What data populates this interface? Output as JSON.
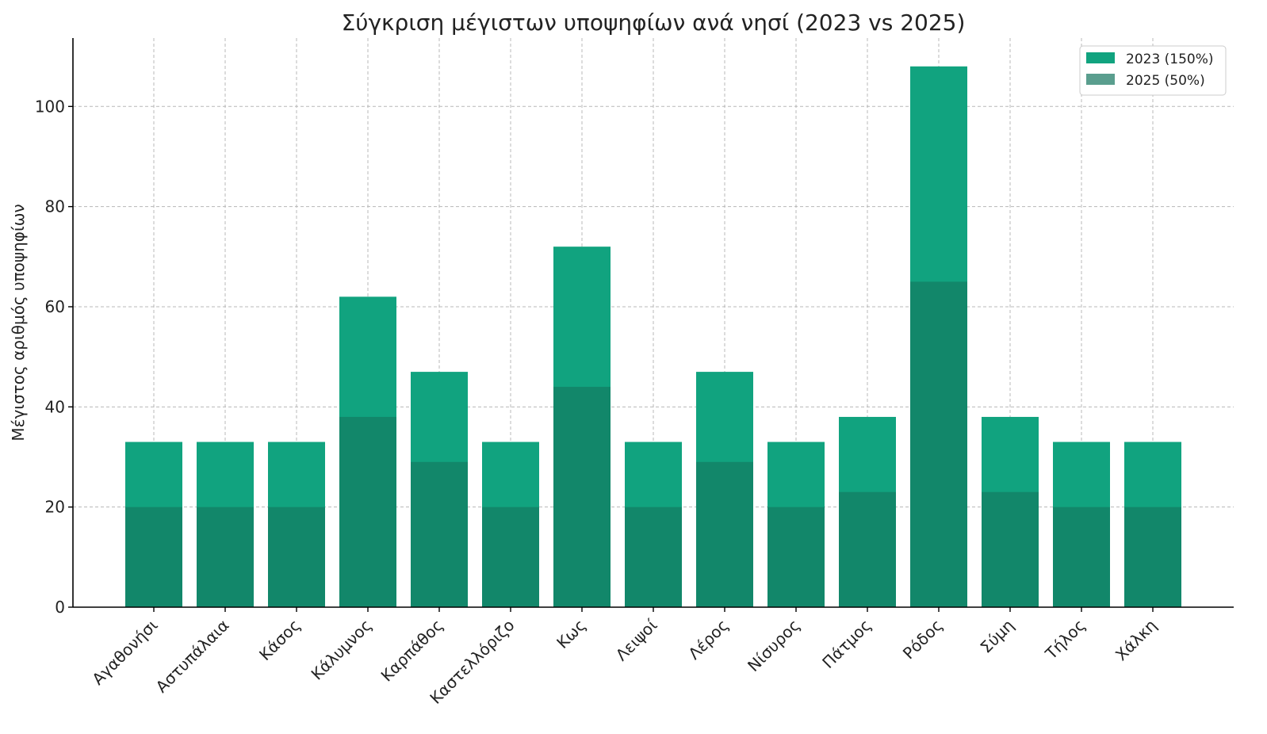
{
  "chart_data": {
    "type": "bar",
    "title": "Σύγκριση μέγιστων υποψηφίων ανά νησί (2023 vs 2025)",
    "xlabel": "",
    "ylabel": "Μέγιστος αριθμός υποψηφίων",
    "ylim": [
      0,
      113
    ],
    "yticks": [
      0,
      20,
      40,
      60,
      80,
      100
    ],
    "grid": true,
    "legend_position": "top-right",
    "categories": [
      "Αγαθονήσι",
      "Αστυπάλαια",
      "Κάσος",
      "Κάλυμνος",
      "Καρπάθος",
      "Καστελλόριζο",
      "Κως",
      "Λειψοί",
      "Λέρος",
      "Νίσυρος",
      "Πάτμος",
      "Ρόδος",
      "Σύμη",
      "Τήλος",
      "Χάλκη"
    ],
    "series": [
      {
        "name": "2023 (150%)",
        "color": "#11a37f",
        "values": [
          33,
          33,
          33,
          62,
          47,
          33,
          72,
          33,
          47,
          33,
          38,
          108,
          38,
          33,
          33
        ]
      },
      {
        "name": "2025 (50%)",
        "color": "#5a9e8e",
        "values": [
          20,
          20,
          20,
          38,
          29,
          20,
          44,
          20,
          29,
          20,
          23,
          65,
          23,
          20,
          20
        ]
      }
    ],
    "overlap_color": "#12876a"
  }
}
